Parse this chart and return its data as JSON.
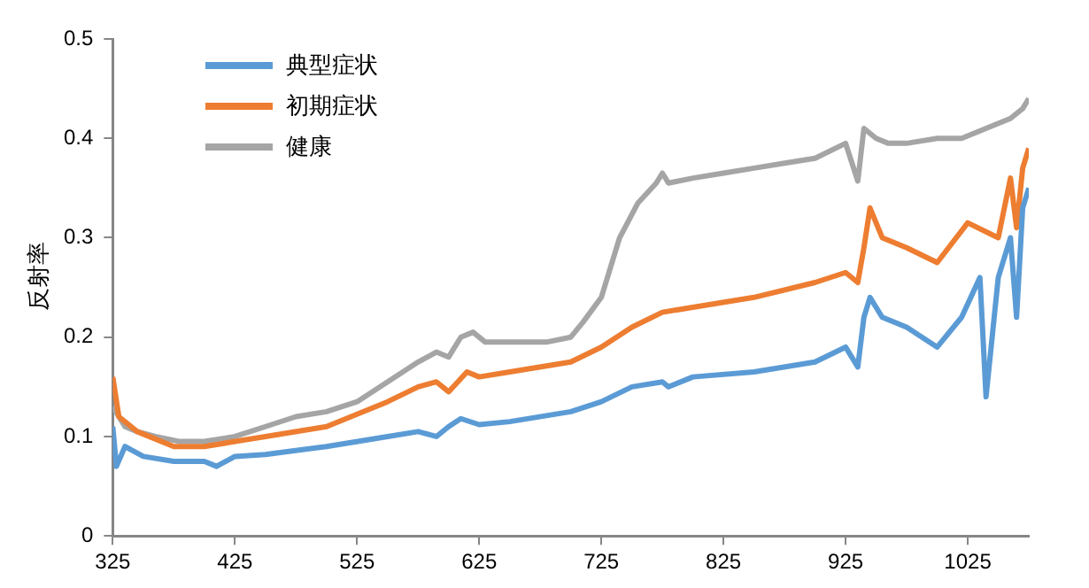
{
  "chart_data": {
    "type": "line",
    "ylabel": "反射率",
    "xlim": [
      325,
      1075
    ],
    "xticks": [
      325,
      425,
      525,
      625,
      725,
      825,
      925,
      1025
    ],
    "ylim": [
      0,
      0.5
    ],
    "yticks": [
      0,
      0.1,
      0.2,
      0.3,
      0.4,
      0.5
    ],
    "grid": false,
    "legend": "top left",
    "marker": "none",
    "line_style": "solid",
    "series": [
      {
        "name": "典型症状",
        "color": "#5b9bd5",
        "x": [
          325,
          328,
          335,
          350,
          375,
          400,
          410,
          425,
          450,
          500,
          550,
          575,
          590,
          600,
          610,
          625,
          650,
          700,
          725,
          750,
          775,
          780,
          800,
          850,
          900,
          925,
          935,
          940,
          945,
          955,
          975,
          1000,
          1020,
          1035,
          1040,
          1050,
          1060,
          1065,
          1070,
          1075
        ],
        "values": [
          0.11,
          0.07,
          0.09,
          0.08,
          0.075,
          0.075,
          0.07,
          0.08,
          0.082,
          0.09,
          0.1,
          0.105,
          0.1,
          0.11,
          0.118,
          0.112,
          0.115,
          0.125,
          0.135,
          0.15,
          0.155,
          0.15,
          0.16,
          0.165,
          0.175,
          0.19,
          0.17,
          0.22,
          0.24,
          0.22,
          0.21,
          0.19,
          0.22,
          0.26,
          0.14,
          0.26,
          0.3,
          0.22,
          0.33,
          0.35
        ]
      },
      {
        "name": "初期症状",
        "color": "#ed7d31",
        "x": [
          325,
          330,
          345,
          375,
          400,
          425,
          450,
          500,
          550,
          575,
          590,
          600,
          615,
          625,
          650,
          700,
          725,
          750,
          775,
          800,
          850,
          900,
          925,
          935,
          940,
          945,
          955,
          975,
          1000,
          1025,
          1050,
          1060,
          1065,
          1070,
          1075
        ],
        "values": [
          0.16,
          0.12,
          0.105,
          0.09,
          0.09,
          0.095,
          0.1,
          0.11,
          0.135,
          0.15,
          0.155,
          0.145,
          0.165,
          0.16,
          0.165,
          0.175,
          0.19,
          0.21,
          0.225,
          0.23,
          0.24,
          0.255,
          0.265,
          0.255,
          0.29,
          0.33,
          0.3,
          0.29,
          0.275,
          0.315,
          0.3,
          0.36,
          0.31,
          0.37,
          0.39
        ]
      },
      {
        "name": "健康",
        "color": "#a5a5a5",
        "x": [
          325,
          335,
          345,
          360,
          380,
          400,
          425,
          450,
          475,
          500,
          525,
          550,
          575,
          590,
          600,
          610,
          620,
          630,
          650,
          680,
          700,
          710,
          725,
          740,
          755,
          770,
          775,
          780,
          800,
          825,
          850,
          875,
          900,
          925,
          935,
          940,
          950,
          960,
          975,
          1000,
          1020,
          1040,
          1060,
          1070,
          1075
        ],
        "values": [
          0.13,
          0.11,
          0.105,
          0.1,
          0.095,
          0.095,
          0.1,
          0.11,
          0.12,
          0.125,
          0.135,
          0.155,
          0.175,
          0.185,
          0.18,
          0.2,
          0.205,
          0.195,
          0.195,
          0.195,
          0.2,
          0.215,
          0.24,
          0.3,
          0.335,
          0.355,
          0.365,
          0.355,
          0.36,
          0.365,
          0.37,
          0.375,
          0.38,
          0.395,
          0.357,
          0.41,
          0.4,
          0.395,
          0.395,
          0.4,
          0.4,
          0.41,
          0.42,
          0.43,
          0.44
        ]
      }
    ]
  }
}
